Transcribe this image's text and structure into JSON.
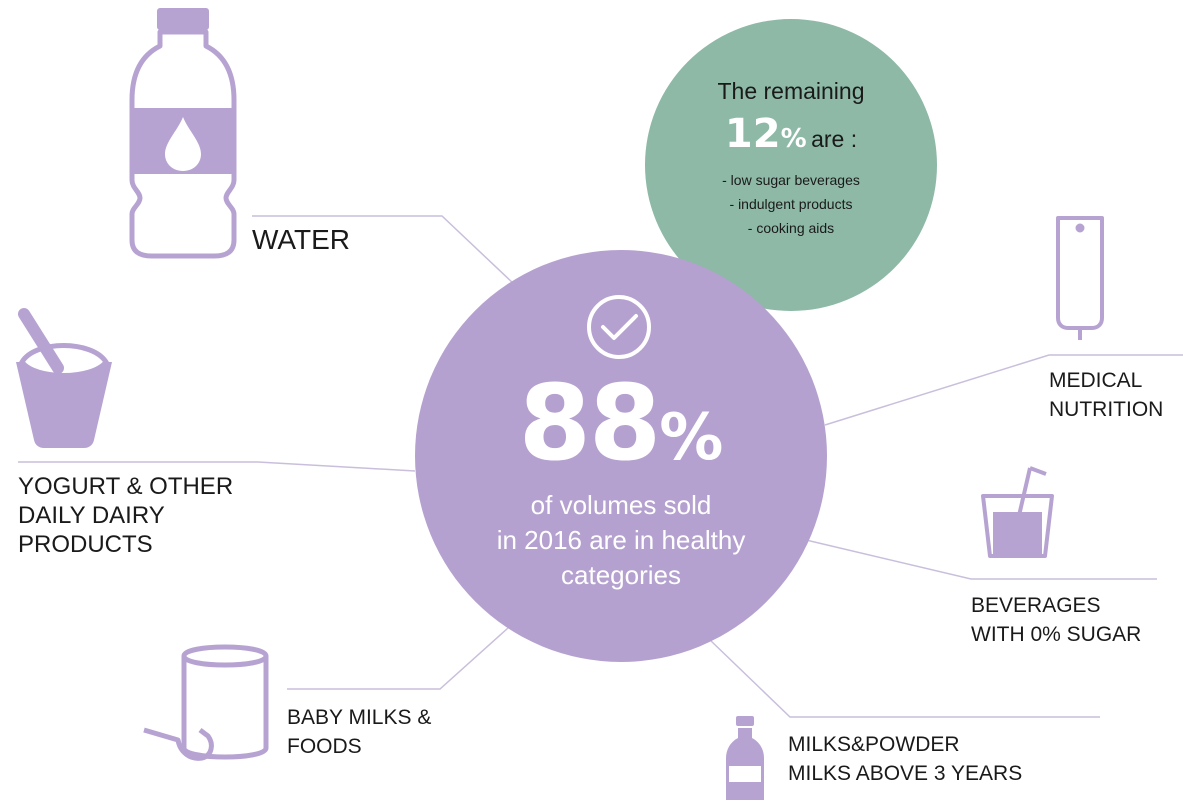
{
  "colors": {
    "purple": "#b5a1cf",
    "icon_purple": "#b7a3d2",
    "green": "#8db9a6",
    "connector": "#c9bfdc",
    "text": "#1a1a1a"
  },
  "main": {
    "percent": "88",
    "percent_sign": "%",
    "description": [
      "of volumes sold",
      "in 2016 are in healthy",
      "categories"
    ],
    "icon": "check-circle-icon"
  },
  "remaining": {
    "heading": "The remaining",
    "percent": "12",
    "percent_sign": "%",
    "suffix": "are :",
    "items": [
      "- low sugar beverages",
      "- indulgent products",
      "- cooking aids"
    ]
  },
  "categories": {
    "water": {
      "lines": [
        "WATER"
      ],
      "icon": "water-bottle-icon"
    },
    "yogurt": {
      "lines": [
        "YOGURT & OTHER",
        "DAILY DAIRY",
        "PRODUCTS"
      ],
      "icon": "yogurt-cup-icon"
    },
    "baby": {
      "lines": [
        "BABY MILKS &",
        "FOODS"
      ],
      "icon": "formula-tin-scoop-icon"
    },
    "medical": {
      "lines": [
        "MEDICAL",
        "NUTRITION"
      ],
      "icon": "feeding-bag-icon"
    },
    "beverages": {
      "lines": [
        "BEVERAGES",
        "WITH 0% SUGAR"
      ],
      "icon": "drink-glass-straw-icon"
    },
    "milks": {
      "lines": [
        "MILKS&POWDER",
        "MILKS ABOVE 3 YEARS"
      ],
      "icon": "milk-bottle-icon"
    }
  }
}
